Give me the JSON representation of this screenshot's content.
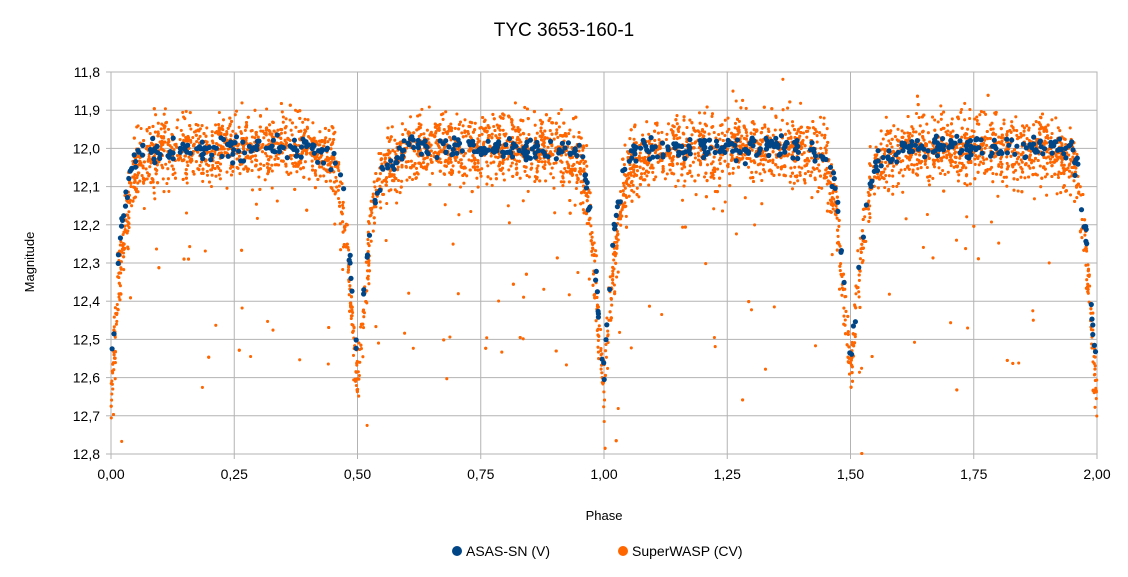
{
  "chart_data": {
    "type": "scatter",
    "title": "TYC 3653-160-1",
    "xlabel": "Phase",
    "ylabel": "Magnitude",
    "xlim": [
      0.0,
      2.0
    ],
    "ylim": [
      11.8,
      12.8
    ],
    "y_inverted": true,
    "grid": true,
    "legend_position": "bottom",
    "x_ticks": [
      "0,00",
      "0,25",
      "0,50",
      "0,75",
      "1,00",
      "1,25",
      "1,50",
      "1,75",
      "2,00"
    ],
    "x_tick_values": [
      0.0,
      0.25,
      0.5,
      0.75,
      1.0,
      1.25,
      1.5,
      1.75,
      2.0
    ],
    "y_ticks": [
      "11,8",
      "11,9",
      "12,0",
      "12,1",
      "12,2",
      "12,3",
      "12,4",
      "12,5",
      "12,6",
      "12,7",
      "12,8"
    ],
    "y_tick_values": [
      11.8,
      11.9,
      12.0,
      12.1,
      12.2,
      12.3,
      12.4,
      12.5,
      12.6,
      12.7,
      12.8
    ],
    "series": [
      {
        "name": "ASAS-SN (V)",
        "color": "#004586",
        "x": [
          0.0,
          0.005,
          0.01,
          0.015,
          0.02,
          0.025,
          0.03,
          0.04,
          0.06,
          0.1,
          0.15,
          0.2,
          0.25,
          0.3,
          0.35,
          0.4,
          0.44,
          0.46,
          0.47,
          0.475,
          0.48,
          0.485,
          0.49,
          0.495,
          0.5,
          0.505,
          0.51,
          0.515,
          0.52,
          0.53,
          0.55,
          0.6,
          0.65,
          0.7,
          0.75,
          0.8,
          0.85,
          0.9,
          0.94,
          0.96,
          0.97,
          0.98,
          0.985,
          0.99,
          0.995
        ],
        "y": [
          12.6,
          12.5,
          12.38,
          12.28,
          12.22,
          12.17,
          12.13,
          12.05,
          12.0,
          12.0,
          12.0,
          12.0,
          12.0,
          12.0,
          12.0,
          12.0,
          12.02,
          12.05,
          12.1,
          12.17,
          12.25,
          12.3,
          12.4,
          12.45,
          12.55,
          12.5,
          12.43,
          12.35,
          12.28,
          12.18,
          12.05,
          12.0,
          12.0,
          12.0,
          12.0,
          12.0,
          12.0,
          12.0,
          12.0,
          12.05,
          12.15,
          12.25,
          12.35,
          12.45,
          12.55
        ]
      },
      {
        "name": "SuperWASP (CV)",
        "color": "#ff6600",
        "x": [
          0.0,
          0.01,
          0.02,
          0.03,
          0.05,
          0.1,
          0.2,
          0.3,
          0.4,
          0.45,
          0.47,
          0.48,
          0.49,
          0.5,
          0.51,
          0.52,
          0.53,
          0.55,
          0.6,
          0.7,
          0.8,
          0.9,
          0.95,
          0.97,
          0.98,
          0.99,
          1.0
        ],
        "y": [
          12.65,
          12.45,
          12.3,
          12.2,
          12.05,
          12.0,
          12.0,
          12.0,
          12.0,
          12.03,
          12.15,
          12.3,
          12.45,
          12.6,
          12.45,
          12.3,
          12.18,
          12.05,
          12.0,
          12.0,
          12.0,
          12.0,
          12.03,
          12.15,
          12.3,
          12.5,
          12.65
        ]
      }
    ]
  }
}
